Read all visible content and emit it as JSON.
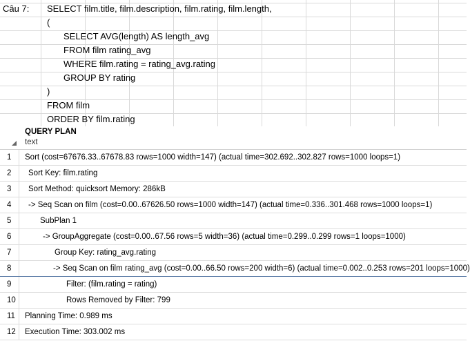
{
  "sheet": {
    "label": "Câu 7:",
    "lines": [
      "SELECT film.title, film.description, film.rating, film.length,",
      "(",
      "SELECT AVG(length) AS length_avg",
      "FROM film rating_avg",
      "WHERE film.rating = rating_avg.rating",
      "GROUP BY rating",
      ")",
      "FROM film",
      "ORDER BY film.rating"
    ]
  },
  "plan": {
    "column_title": "QUERY PLAN",
    "column_type": "text",
    "rows": [
      {
        "num": "1",
        "text": "Sort  (cost=67676.33..67678.83 rows=1000 width=147) (actual time=302.692..302.827 rows=1000 loops=1)"
      },
      {
        "num": "2",
        "text": "Sort Key: film.rating"
      },
      {
        "num": "3",
        "text": "Sort Method: quicksort  Memory: 286kB"
      },
      {
        "num": "4",
        "text": "->  Seq Scan on film  (cost=0.00..67626.50 rows=1000 width=147) (actual time=0.336..301.468 rows=1000 loops=1)"
      },
      {
        "num": "5",
        "text": "SubPlan 1"
      },
      {
        "num": "6",
        "text": "->  GroupAggregate  (cost=0.00..67.56 rows=5 width=36) (actual time=0.299..0.299 rows=1 loops=1000)"
      },
      {
        "num": "7",
        "text": "Group Key: rating_avg.rating"
      },
      {
        "num": "8",
        "text": "->  Seq Scan on film rating_avg  (cost=0.00..66.50 rows=200 width=6) (actual time=0.002..0.253 rows=201 loops=1000)"
      },
      {
        "num": "9",
        "text": "Filter: (film.rating = rating)"
      },
      {
        "num": "10",
        "text": "Rows Removed by Filter: 799"
      },
      {
        "num": "11",
        "text": "Planning Time: 0.989 ms"
      },
      {
        "num": "12",
        "text": "Execution Time: 303.002 ms"
      }
    ]
  }
}
